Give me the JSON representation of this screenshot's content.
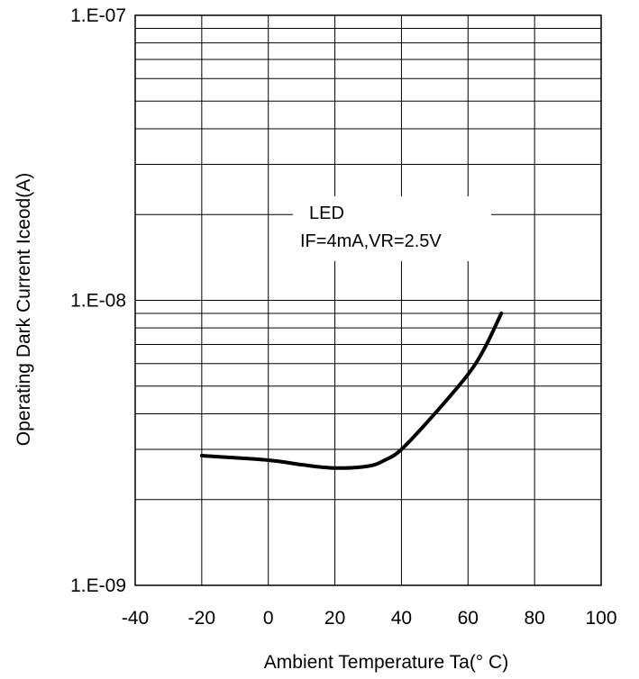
{
  "chart_data": {
    "type": "line",
    "title": "",
    "xlabel": "Ambient Temperature Ta(° C)",
    "ylabel": "Operating Dark Current Iceod(A)",
    "xlim": [
      -40,
      100
    ],
    "ylim": [
      1e-09,
      1e-07
    ],
    "yscale": "log",
    "grid": true,
    "x_ticks": [
      -40,
      -20,
      0,
      20,
      40,
      60,
      80,
      100
    ],
    "x_tick_labels": [
      "-40",
      "-20",
      "0",
      "20",
      "40",
      "60",
      "80",
      "100"
    ],
    "y_ticks": [
      1e-09,
      1e-08,
      1e-07
    ],
    "y_tick_labels": [
      "1.E-09",
      "1.E-08",
      "1.E-07"
    ],
    "annotation": [
      "LED",
      "IF=4mA,VR=2.5V"
    ],
    "series": [
      {
        "name": "",
        "x": [
          -20,
          0,
          10,
          20,
          30,
          35,
          40,
          50,
          60,
          65,
          70
        ],
        "y": [
          2.85e-09,
          2.75e-09,
          2.65e-09,
          2.58e-09,
          2.62e-09,
          2.75e-09,
          3e-09,
          4e-09,
          5.5e-09,
          6.8e-09,
          9e-09
        ]
      }
    ]
  }
}
